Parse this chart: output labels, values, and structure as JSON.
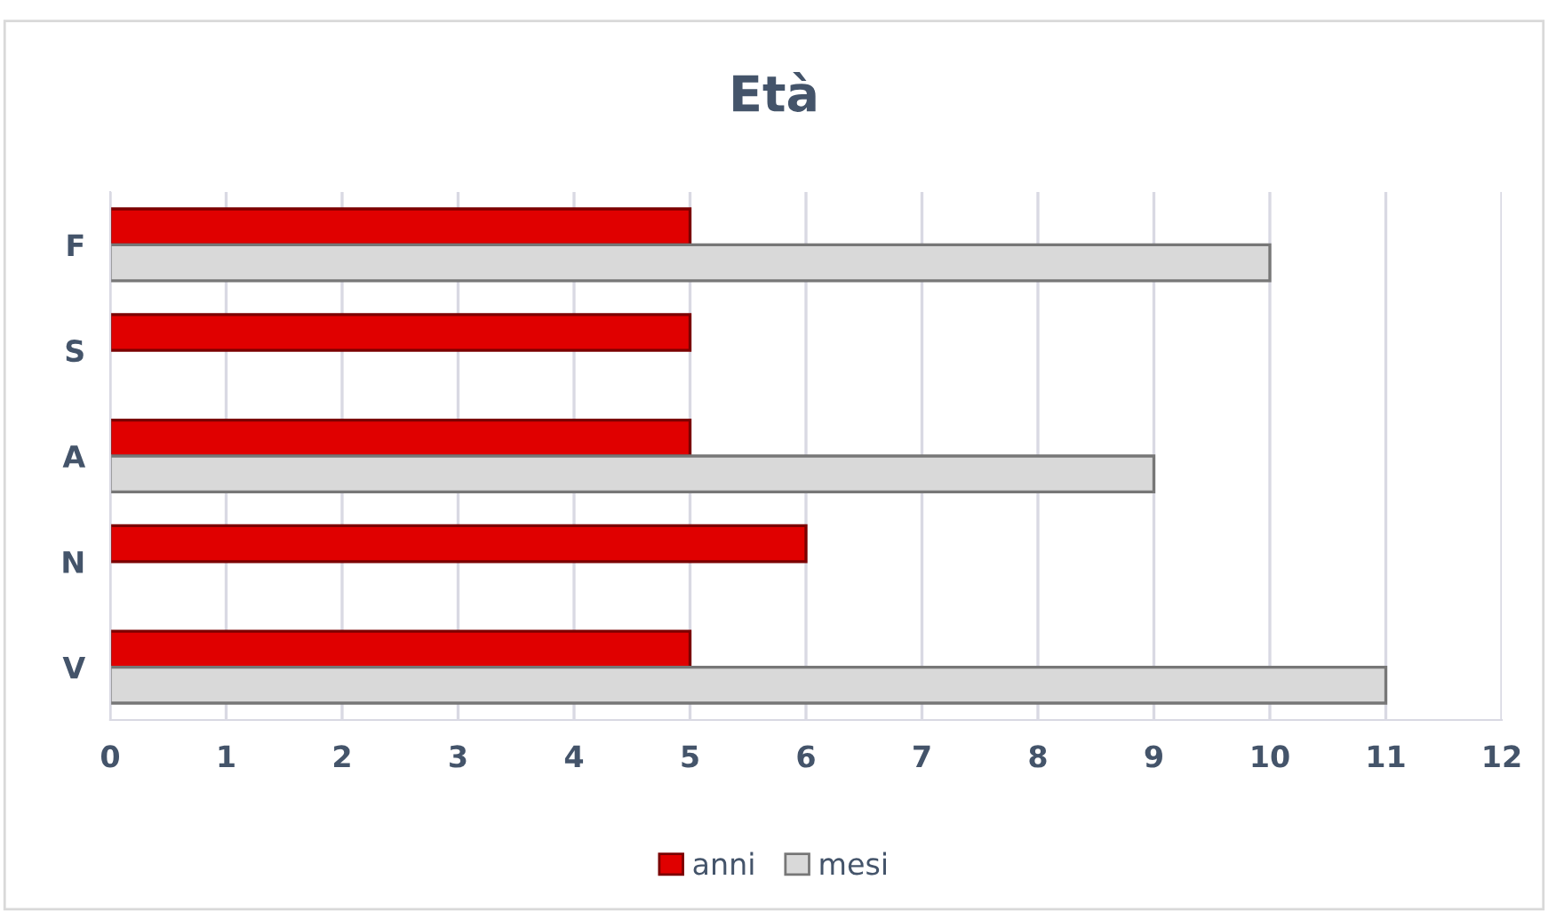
{
  "chart_data": {
    "type": "bar",
    "orientation": "horizontal",
    "title": "Età",
    "categories": [
      "F",
      "S",
      "A",
      "N",
      "V"
    ],
    "series": [
      {
        "name": "anni",
        "color": "#e00000",
        "values": [
          5,
          5,
          5,
          6,
          5
        ]
      },
      {
        "name": "mesi",
        "color": "#d9d9d9",
        "values": [
          10,
          null,
          9,
          null,
          11
        ]
      }
    ],
    "xlim": [
      0,
      12
    ],
    "xticks": [
      0,
      1,
      2,
      3,
      4,
      5,
      6,
      7,
      8,
      9,
      10,
      11,
      12
    ],
    "grid": "x",
    "legend": "bottom"
  }
}
